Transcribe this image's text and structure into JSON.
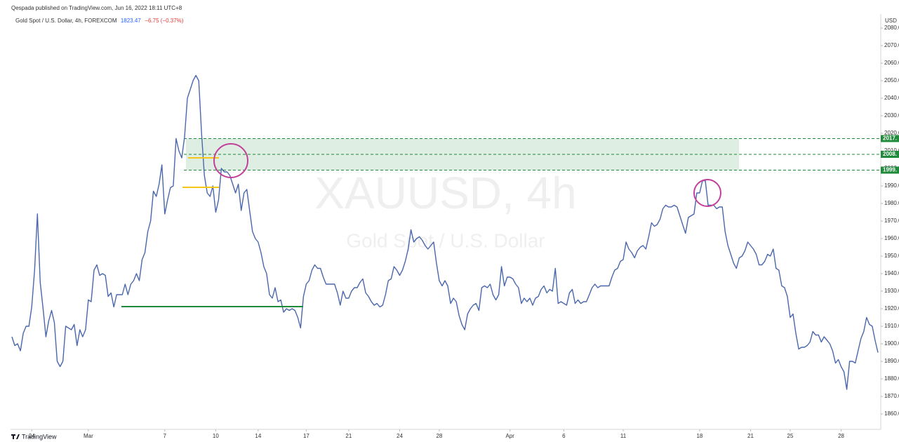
{
  "chart_data": {
    "type": "line",
    "publisher": "Qespada published on TradingView.com, Jun 16, 2022 18:11 UTC+8",
    "title": "Gold Spot / U.S. Dollar, 4h, FOREXCOM",
    "last_price": "1823.47",
    "change": "−6.75 (−0.37%)",
    "currency": "USD",
    "watermark": "XAUUSD, 4h",
    "watermark_subtitle": "Gold Spot / U.S. Dollar",
    "brand": "TradingView",
    "color": "#4a67ad",
    "xlim": [
      -0.5,
      307
    ],
    "xticks": [
      {
        "value": 7,
        "label": "24"
      },
      {
        "value": 27,
        "label": "Mar"
      },
      {
        "value": 54,
        "label": "7"
      },
      {
        "value": 72,
        "label": "10"
      },
      {
        "value": 87,
        "label": "14"
      },
      {
        "value": 104,
        "label": "17"
      },
      {
        "value": 119,
        "label": "21"
      },
      {
        "value": 137,
        "label": "24"
      },
      {
        "value": 151,
        "label": "28"
      },
      {
        "value": 176,
        "label": "Apr"
      },
      {
        "value": 195,
        "label": "6"
      },
      {
        "value": 216,
        "label": "11"
      },
      {
        "value": 243,
        "label": "18"
      },
      {
        "value": 261,
        "label": "21"
      },
      {
        "value": 275,
        "label": "25"
      },
      {
        "value": 293,
        "label": "28"
      }
    ],
    "ylim": [
      1851.2,
      2086
    ],
    "yticks": [
      {
        "value": 1860,
        "label": "1860.0"
      },
      {
        "value": 1870,
        "label": "1870.0"
      },
      {
        "value": 1880,
        "label": "1880.0"
      },
      {
        "value": 1890,
        "label": "1890.0"
      },
      {
        "value": 1900,
        "label": "1900.0"
      },
      {
        "value": 1910,
        "label": "1910.0"
      },
      {
        "value": 1920,
        "label": "1920.0"
      },
      {
        "value": 1930,
        "label": "1930.0"
      },
      {
        "value": 1940,
        "label": "1940.0"
      },
      {
        "value": 1950,
        "label": "1950.0"
      },
      {
        "value": 1960,
        "label": "1960.0"
      },
      {
        "value": 1970,
        "label": "1970.0"
      },
      {
        "value": 1980,
        "label": "1980.0"
      },
      {
        "value": 1990,
        "label": "1990.0"
      },
      {
        "value": 2000,
        "label": "2000.0"
      },
      {
        "value": 2010,
        "label": "2010.0"
      },
      {
        "value": 2020,
        "label": "2020.0"
      },
      {
        "value": 2030,
        "label": "2030.0"
      },
      {
        "value": 2040,
        "label": "2040.0"
      },
      {
        "value": 2050,
        "label": "2050.0"
      },
      {
        "value": 2060,
        "label": "2060.0"
      },
      {
        "value": 2070,
        "label": "2070.0"
      },
      {
        "value": 2080,
        "label": "2080.0"
      }
    ],
    "levels": [
      {
        "value": 2017,
        "label": "2017."
      },
      {
        "value": 2008,
        "label": "2008."
      },
      {
        "value": 1999,
        "label": "1999."
      }
    ],
    "level_color": "#1f8a3a",
    "values": [
      1904,
      1899,
      1900,
      1896,
      1906,
      1910,
      1910,
      1921,
      1942,
      1974,
      1935,
      1920,
      1904,
      1913,
      1919,
      1912,
      1890,
      1887,
      1890,
      1910,
      1909,
      1908,
      1911,
      1899,
      1908,
      1904,
      1908,
      1925,
      1924,
      1942,
      1945,
      1939,
      1940,
      1939,
      1927,
      1929,
      1921,
      1928,
      1928,
      1928,
      1934,
      1928,
      1934,
      1936,
      1940,
      1936,
      1948,
      1952,
      1964,
      1970,
      1987,
      1984,
      1991,
      2002,
      1974,
      1982,
      1989,
      1990,
      2017,
      2010,
      2006,
      2018,
      2040,
      2045,
      2050,
      2053,
      2050,
      2020,
      1996,
      1986,
      1984,
      1990,
      1975,
      1982,
      2000,
      1998,
      1998,
      1996,
      1991,
      1986,
      1991,
      1976,
      1986,
      1988,
      1976,
      1964,
      1960,
      1958,
      1952,
      1944,
      1940,
      1928,
      1926,
      1932,
      1924,
      1925,
      1918,
      1920,
      1919,
      1920,
      1919,
      1915,
      1909,
      1927,
      1934,
      1936,
      1942,
      1945,
      1943,
      1943,
      1938,
      1934,
      1934,
      1934,
      1934,
      1929,
      1922,
      1930,
      1926,
      1926,
      1930,
      1932,
      1932,
      1935,
      1937,
      1929,
      1927,
      1924,
      1922,
      1923,
      1921,
      1922,
      1928,
      1936,
      1937,
      1944,
      1942,
      1939,
      1942,
      1947,
      1954,
      1965,
      1958,
      1960,
      1961,
      1959,
      1956,
      1954,
      1956,
      1958,
      1946,
      1936,
      1933,
      1936,
      1933,
      1923,
      1926,
      1924,
      1916,
      1911,
      1908,
      1917,
      1920,
      1922,
      1923,
      1919,
      1932,
      1933,
      1932,
      1934,
      1928,
      1925,
      1928,
      1944,
      1933,
      1938,
      1938,
      1937,
      1934,
      1932,
      1923,
      1926,
      1924,
      1926,
      1922,
      1926,
      1927,
      1931,
      1933,
      1929,
      1931,
      1930,
      1943,
      1923,
      1924,
      1923,
      1922,
      1929,
      1931,
      1923,
      1925,
      1923,
      1924,
      1924,
      1928,
      1932,
      1934,
      1932,
      1933,
      1933,
      1933,
      1933,
      1938,
      1942,
      1943,
      1947,
      1948,
      1958,
      1954,
      1952,
      1949,
      1953,
      1955,
      1956,
      1954,
      1961,
      1969,
      1967,
      1968,
      1971,
      1977,
      1979,
      1978,
      1978,
      1979,
      1978,
      1973,
      1968,
      1963,
      1972,
      1973,
      1974,
      1986,
      1986,
      1993,
      1993,
      1979,
      1979,
      1979,
      1977,
      1978,
      1978,
      1964,
      1956,
      1951,
      1946,
      1943,
      1949,
      1950,
      1953,
      1958,
      1956,
      1954,
      1951,
      1945,
      1945,
      1947,
      1951,
      1950,
      1954,
      1943,
      1942,
      1933,
      1932,
      1927,
      1915,
      1917,
      1906,
      1897,
      1898,
      1898,
      1899,
      1901,
      1907,
      1905,
      1905,
      1901,
      1904,
      1902,
      1900,
      1896,
      1889,
      1891,
      1887,
      1884,
      1874,
      1890,
      1890,
      1889,
      1896,
      1903,
      1907,
      1915,
      1911,
      1910,
      1902,
      1895
    ]
  }
}
